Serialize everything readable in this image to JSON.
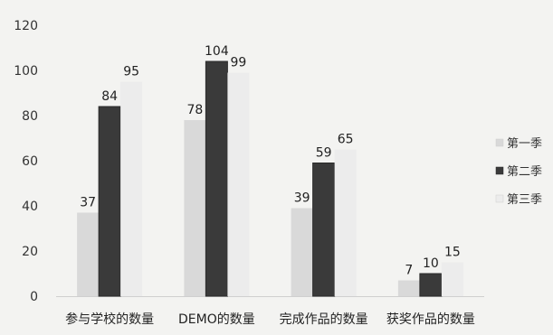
{
  "chart_data": {
    "type": "bar",
    "categories": [
      "参与学校的数量",
      "DEMO的数量",
      "完成作品的数量",
      "获奖作品的数量"
    ],
    "series": [
      {
        "name": "第一季",
        "values": [
          37,
          78,
          39,
          7
        ],
        "color": "#d9d9d9"
      },
      {
        "name": "第二季",
        "values": [
          84,
          104,
          59,
          10
        ],
        "color": "#3a3a3a"
      },
      {
        "name": "第三季",
        "values": [
          95,
          99,
          65,
          15
        ],
        "color": "#ececec"
      }
    ],
    "ylim": [
      0,
      120
    ],
    "yticks": [
      0,
      20,
      40,
      60,
      80,
      100,
      120
    ],
    "grid": false,
    "legend": "right",
    "title": "",
    "xlabel": "",
    "ylabel": ""
  }
}
